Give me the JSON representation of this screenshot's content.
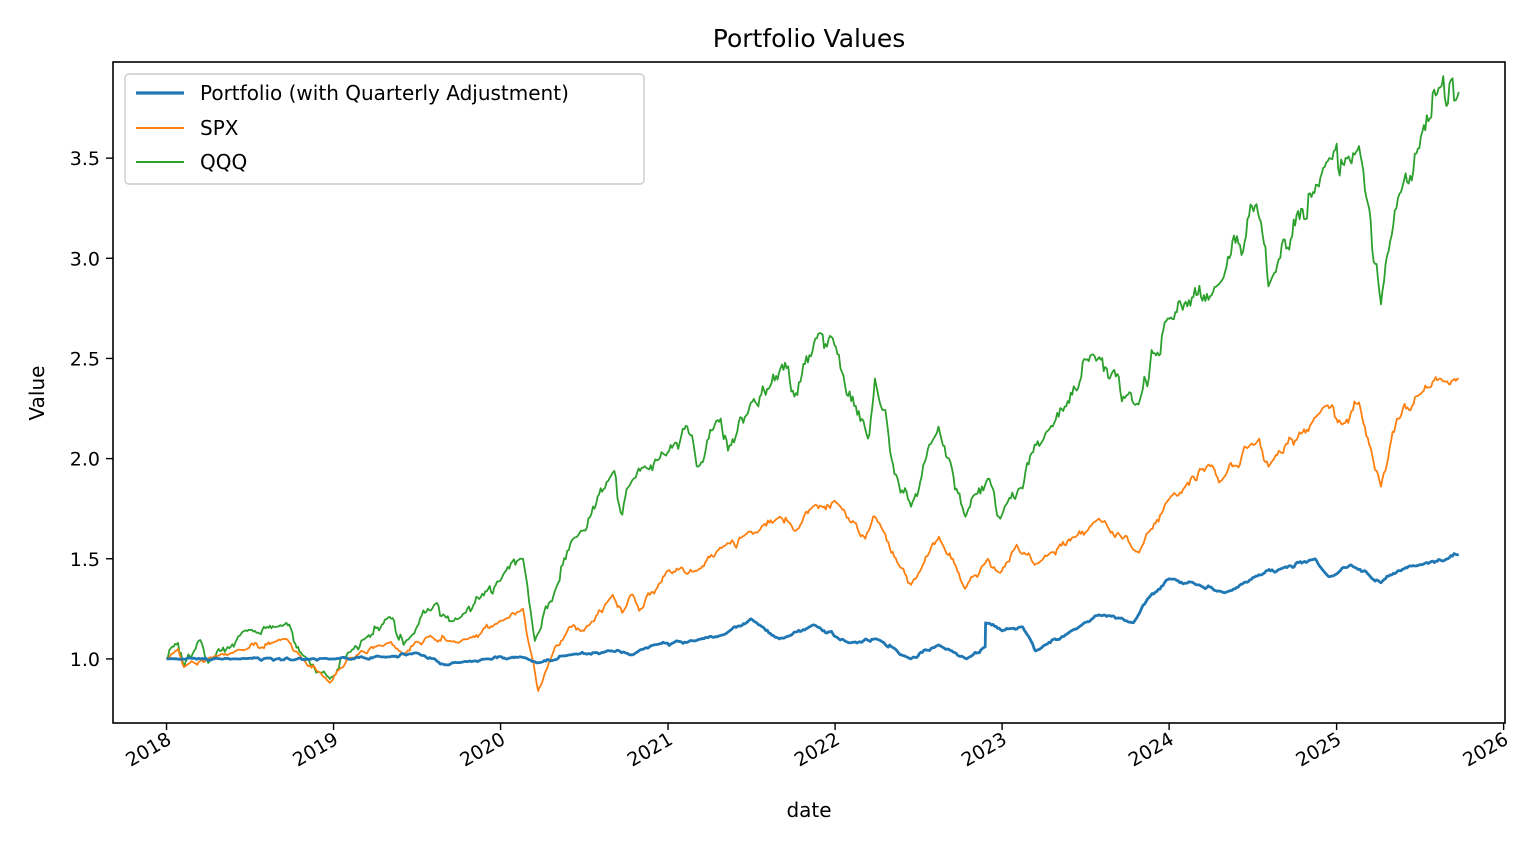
{
  "chart_data": {
    "type": "line",
    "title": "Portfolio Values",
    "xlabel": "date",
    "ylabel": "Value",
    "xlim": [
      "2017-09-06",
      "2026-01-04"
    ],
    "ylim": [
      0.68,
      3.98
    ],
    "xticks": [
      "2018",
      "2019",
      "2020",
      "2021",
      "2022",
      "2023",
      "2024",
      "2025",
      "2026"
    ],
    "yticks": [
      "1.0",
      "1.5",
      "2.0",
      "2.5",
      "3.0",
      "3.5"
    ],
    "grid": false,
    "legend_position": "top-left",
    "series": [
      {
        "name": "Portfolio (with Quarterly Adjustment)",
        "color": "#1f77b4",
        "points": [
          [
            "2018-01-01",
            1.0
          ],
          [
            "2018-06-01",
            1.0
          ],
          [
            "2019-01-01",
            1.0
          ],
          [
            "2019-05-01",
            1.01
          ],
          [
            "2019-07-01",
            1.03
          ],
          [
            "2019-09-01",
            0.97
          ],
          [
            "2019-12-01",
            1.0
          ],
          [
            "2020-02-15",
            1.01
          ],
          [
            "2020-03-20",
            0.98
          ],
          [
            "2020-06-01",
            1.02
          ],
          [
            "2020-09-01",
            1.04
          ],
          [
            "2020-10-15",
            1.02
          ],
          [
            "2020-12-01",
            1.07
          ],
          [
            "2021-03-01",
            1.09
          ],
          [
            "2021-05-01",
            1.12
          ],
          [
            "2021-07-01",
            1.2
          ],
          [
            "2021-09-01",
            1.1
          ],
          [
            "2021-11-15",
            1.17
          ],
          [
            "2022-02-01",
            1.08
          ],
          [
            "2022-04-01",
            1.1
          ],
          [
            "2022-06-15",
            1.0
          ],
          [
            "2022-08-15",
            1.07
          ],
          [
            "2022-10-15",
            1.0
          ],
          [
            "2022-11-25",
            1.06
          ],
          [
            "2022-11-26",
            1.18
          ],
          [
            "2023-01-01",
            1.14
          ],
          [
            "2023-02-15",
            1.16
          ],
          [
            "2023-03-15",
            1.04
          ],
          [
            "2023-06-01",
            1.14
          ],
          [
            "2023-08-01",
            1.22
          ],
          [
            "2023-10-15",
            1.18
          ],
          [
            "2023-11-15",
            1.3
          ],
          [
            "2024-01-01",
            1.4
          ],
          [
            "2024-03-01",
            1.37
          ],
          [
            "2024-05-01",
            1.33
          ],
          [
            "2024-07-15",
            1.42
          ],
          [
            "2024-09-01",
            1.45
          ],
          [
            "2024-11-15",
            1.5
          ],
          [
            "2024-12-15",
            1.41
          ],
          [
            "2025-02-01",
            1.47
          ],
          [
            "2025-04-08",
            1.38
          ],
          [
            "2025-05-15",
            1.44
          ],
          [
            "2025-07-01",
            1.47
          ],
          [
            "2025-09-01",
            1.5
          ],
          [
            "2025-09-25",
            1.52
          ]
        ]
      },
      {
        "name": "SPX",
        "color": "#ff7f0e",
        "points": [
          [
            "2018-01-01",
            1.0
          ],
          [
            "2018-01-26",
            1.05
          ],
          [
            "2018-02-08",
            0.96
          ],
          [
            "2018-04-01",
            1.0
          ],
          [
            "2018-06-01",
            1.04
          ],
          [
            "2018-09-20",
            1.1
          ],
          [
            "2018-10-25",
            1.0
          ],
          [
            "2018-12-24",
            0.88
          ],
          [
            "2019-02-01",
            1.0
          ],
          [
            "2019-04-30",
            1.08
          ],
          [
            "2019-06-03",
            1.02
          ],
          [
            "2019-07-25",
            1.11
          ],
          [
            "2019-10-01",
            1.08
          ],
          [
            "2019-12-31",
            1.19
          ],
          [
            "2020-02-19",
            1.25
          ],
          [
            "2020-03-23",
            0.84
          ],
          [
            "2020-04-29",
            1.06
          ],
          [
            "2020-06-08",
            1.17
          ],
          [
            "2020-07-01",
            1.14
          ],
          [
            "2020-09-02",
            1.32
          ],
          [
            "2020-09-23",
            1.23
          ],
          [
            "2020-10-12",
            1.32
          ],
          [
            "2020-10-30",
            1.24
          ],
          [
            "2020-12-31",
            1.44
          ],
          [
            "2021-03-04",
            1.44
          ],
          [
            "2021-05-01",
            1.56
          ],
          [
            "2021-07-15",
            1.63
          ],
          [
            "2021-09-02",
            1.71
          ],
          [
            "2021-10-04",
            1.64
          ],
          [
            "2021-11-19",
            1.77
          ],
          [
            "2021-12-31",
            1.79
          ],
          [
            "2022-03-08",
            1.6
          ],
          [
            "2022-03-29",
            1.71
          ],
          [
            "2022-05-20",
            1.47
          ],
          [
            "2022-06-16",
            1.37
          ],
          [
            "2022-08-16",
            1.61
          ],
          [
            "2022-10-12",
            1.35
          ],
          [
            "2022-12-01",
            1.5
          ],
          [
            "2022-12-28",
            1.43
          ],
          [
            "2023-02-02",
            1.57
          ],
          [
            "2023-03-13",
            1.47
          ],
          [
            "2023-07-31",
            1.7
          ],
          [
            "2023-10-27",
            1.53
          ],
          [
            "2023-12-29",
            1.79
          ],
          [
            "2024-03-28",
            1.97
          ],
          [
            "2024-04-19",
            1.88
          ],
          [
            "2024-07-16",
            2.1
          ],
          [
            "2024-08-05",
            1.96
          ],
          [
            "2024-12-06",
            2.26
          ],
          [
            "2025-01-13",
            2.17
          ],
          [
            "2025-02-19",
            2.28
          ],
          [
            "2025-04-08",
            1.86
          ],
          [
            "2025-05-13",
            2.2
          ],
          [
            "2025-07-01",
            2.32
          ],
          [
            "2025-08-15",
            2.4
          ],
          [
            "2025-09-25",
            2.4
          ]
        ]
      },
      {
        "name": "QQQ",
        "color": "#2ca02c",
        "points": [
          [
            "2018-01-01",
            1.0
          ],
          [
            "2018-01-26",
            1.08
          ],
          [
            "2018-02-08",
            0.96
          ],
          [
            "2018-03-12",
            1.09
          ],
          [
            "2018-04-02",
            0.98
          ],
          [
            "2018-06-20",
            1.14
          ],
          [
            "2018-09-20",
            1.18
          ],
          [
            "2018-10-25",
            1.02
          ],
          [
            "2018-12-24",
            0.9
          ],
          [
            "2019-02-01",
            1.03
          ],
          [
            "2019-05-03",
            1.21
          ],
          [
            "2019-06-03",
            1.07
          ],
          [
            "2019-07-26",
            1.25
          ],
          [
            "2019-10-01",
            1.2
          ],
          [
            "2019-12-31",
            1.39
          ],
          [
            "2020-02-19",
            1.5
          ],
          [
            "2020-03-16",
            1.09
          ],
          [
            "2020-04-29",
            1.34
          ],
          [
            "2020-06-08",
            1.6
          ],
          [
            "2020-09-02",
            1.93
          ],
          [
            "2020-09-23",
            1.72
          ],
          [
            "2020-10-12",
            1.88
          ],
          [
            "2020-12-31",
            2.03
          ],
          [
            "2021-02-12",
            2.16
          ],
          [
            "2021-03-08",
            1.96
          ],
          [
            "2021-04-26",
            2.2
          ],
          [
            "2021-05-12",
            2.04
          ],
          [
            "2021-07-01",
            2.28
          ],
          [
            "2021-09-07",
            2.47
          ],
          [
            "2021-10-04",
            2.31
          ],
          [
            "2021-11-19",
            2.6
          ],
          [
            "2021-12-27",
            2.6
          ],
          [
            "2022-03-14",
            2.1
          ],
          [
            "2022-03-29",
            2.4
          ],
          [
            "2022-05-24",
            1.83
          ],
          [
            "2022-06-16",
            1.76
          ],
          [
            "2022-08-15",
            2.16
          ],
          [
            "2022-10-13",
            1.71
          ],
          [
            "2022-12-01",
            1.9
          ],
          [
            "2022-12-28",
            1.7
          ],
          [
            "2023-04-15",
            2.15
          ],
          [
            "2023-07-19",
            2.52
          ],
          [
            "2023-10-26",
            2.27
          ],
          [
            "2023-12-29",
            2.7
          ],
          [
            "2024-04-19",
            2.87
          ],
          [
            "2024-07-10",
            3.27
          ],
          [
            "2024-08-05",
            2.86
          ],
          [
            "2024-12-16",
            3.5
          ],
          [
            "2025-02-19",
            3.56
          ],
          [
            "2025-04-08",
            2.77
          ],
          [
            "2025-05-15",
            3.3
          ],
          [
            "2025-07-01",
            3.55
          ],
          [
            "2025-08-12",
            3.85
          ],
          [
            "2025-09-25",
            3.83
          ]
        ]
      }
    ]
  }
}
